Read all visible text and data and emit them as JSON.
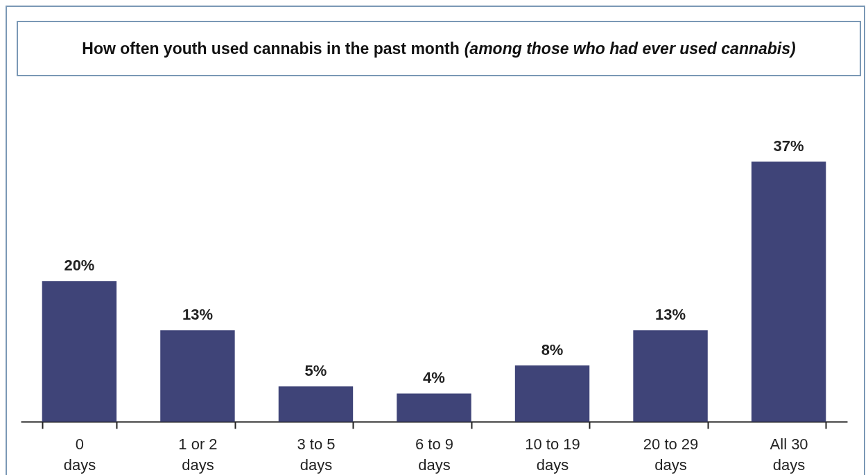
{
  "chart_data": {
    "type": "bar",
    "title": "How often youth used cannabis in the past month",
    "subtitle": "(among those who had ever used cannabis)",
    "categories": [
      "0 days",
      "1 or 2 days",
      "3 to 5 days",
      "6 to 9 days",
      "10 to 19 days",
      "20 to 29 days",
      "All 30 days"
    ],
    "values": [
      20,
      13,
      5,
      4,
      8,
      13,
      37
    ],
    "value_labels": [
      "20%",
      "13%",
      "5%",
      "4%",
      "8%",
      "13%",
      "37%"
    ],
    "color": "#3f4478"
  }
}
